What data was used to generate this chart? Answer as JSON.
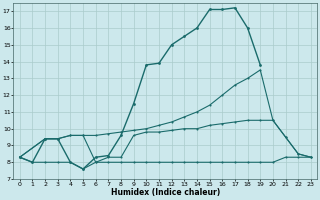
{
  "xlabel": "Humidex (Indice chaleur)",
  "bg_color": "#cce8ec",
  "grid_color": "#aacccc",
  "line_color": "#1a6b6b",
  "xlim": [
    -0.5,
    23.5
  ],
  "ylim": [
    7.0,
    17.5
  ],
  "xticks": [
    0,
    1,
    2,
    3,
    4,
    5,
    6,
    7,
    8,
    9,
    10,
    11,
    12,
    13,
    14,
    15,
    16,
    17,
    18,
    19,
    20,
    21,
    22,
    23
  ],
  "yticks": [
    7,
    8,
    9,
    10,
    11,
    12,
    13,
    14,
    15,
    16,
    17
  ],
  "series": [
    {
      "x": [
        0,
        1,
        2,
        3,
        4,
        5,
        6,
        7,
        8,
        9,
        10,
        11,
        12,
        13,
        14,
        15,
        16,
        17,
        18,
        19,
        20
      ],
      "y": [
        8.3,
        8.0,
        9.4,
        9.4,
        8.0,
        7.6,
        8.3,
        8.4,
        9.6,
        11.5,
        13.8,
        13.9,
        15.0,
        15.5,
        16.0,
        17.1,
        17.1,
        17.2,
        16.0,
        13.8,
        null
      ],
      "linewidth": 1.0,
      "markersize": 2.0
    },
    {
      "x": [
        0,
        1,
        2,
        3,
        4,
        5,
        6,
        7,
        8,
        9,
        10,
        11,
        12,
        13,
        14,
        15,
        16,
        17,
        18,
        19,
        20,
        21,
        22,
        23
      ],
      "y": [
        8.3,
        8.0,
        8.0,
        8.0,
        8.0,
        7.6,
        8.0,
        8.0,
        8.0,
        8.0,
        8.0,
        8.0,
        8.0,
        8.0,
        8.0,
        8.0,
        8.0,
        8.0,
        8.0,
        8.0,
        8.0,
        8.3,
        8.3,
        8.3
      ],
      "linewidth": 0.8,
      "markersize": 1.5
    },
    {
      "x": [
        0,
        2,
        3,
        4,
        5,
        6,
        7,
        8,
        9,
        10,
        11,
        12,
        13,
        14,
        15,
        16,
        17,
        18,
        19,
        20,
        21,
        22,
        23
      ],
      "y": [
        8.3,
        9.4,
        9.4,
        9.6,
        9.6,
        9.6,
        9.7,
        9.8,
        9.9,
        10.0,
        10.2,
        10.4,
        10.7,
        11.0,
        11.4,
        12.0,
        12.6,
        13.0,
        13.5,
        10.5,
        9.5,
        8.5,
        8.3
      ],
      "linewidth": 0.8,
      "markersize": 1.5
    },
    {
      "x": [
        0,
        2,
        3,
        4,
        5,
        6,
        7,
        8,
        9,
        10,
        11,
        12,
        13,
        14,
        15,
        16,
        17,
        18,
        19,
        20,
        21,
        22,
        23
      ],
      "y": [
        8.3,
        9.4,
        9.4,
        9.6,
        9.6,
        8.0,
        8.3,
        8.3,
        9.6,
        9.8,
        9.8,
        9.9,
        10.0,
        10.0,
        10.2,
        10.3,
        10.4,
        10.5,
        10.5,
        10.5,
        9.5,
        8.5,
        8.3
      ],
      "linewidth": 0.8,
      "markersize": 1.5
    }
  ]
}
